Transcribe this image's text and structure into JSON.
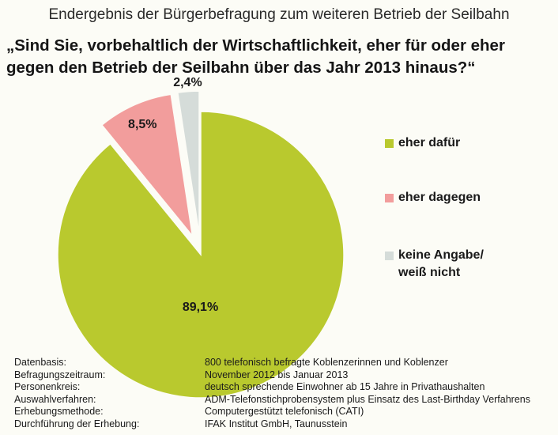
{
  "header": {
    "title": "Endergebnis der Bürgerbefragung zum weiteren Betrieb der Seilbahn",
    "question_line1": "„Sind Sie, vorbehaltlich der Wirtschaftlichkeit, eher für oder eher",
    "question_line2": "gegen den Betrieb der Seilbahn über das Jahr 2013 hinaus?“"
  },
  "chart_data": {
    "type": "pie",
    "title": "Endergebnis der Bürgerbefragung zum weiteren Betrieb der Seilbahn",
    "legend_position": "right",
    "slices": [
      {
        "label": "eher dafür",
        "value": 89.1,
        "value_label": "89,1%",
        "color": "#b9c92e",
        "exploded": false
      },
      {
        "label": "eher dagegen",
        "value": 8.5,
        "value_label": "8,5%",
        "color": "#f29d9c",
        "exploded": true
      },
      {
        "label": "keine Angabe/\nweiß nicht",
        "value": 2.4,
        "value_label": "2,4%",
        "color": "#d5dcd9",
        "exploded": true
      }
    ]
  },
  "footer": {
    "rows": [
      {
        "label": "Datenbasis:",
        "value": "800 telefonisch befragte Koblenzerinnen und Koblenzer"
      },
      {
        "label": "Befragungszeitraum:",
        "value": "November 2012 bis Januar 2013"
      },
      {
        "label": "Personenkreis:",
        "value": "deutsch sprechende Einwohner ab 15 Jahre in Privathaushalten"
      },
      {
        "label": "Auswahlverfahren:",
        "value": "ADM-Telefonstichprobensystem plus Einsatz des Last-Birthday Verfahrens"
      },
      {
        "label": "Erhebungsmethode:",
        "value": "Computergestützt telefonisch (CATI)"
      },
      {
        "label": "Durchführung der Erhebung:",
        "value": "IFAK Institut GmbH, Taunusstein"
      }
    ]
  }
}
